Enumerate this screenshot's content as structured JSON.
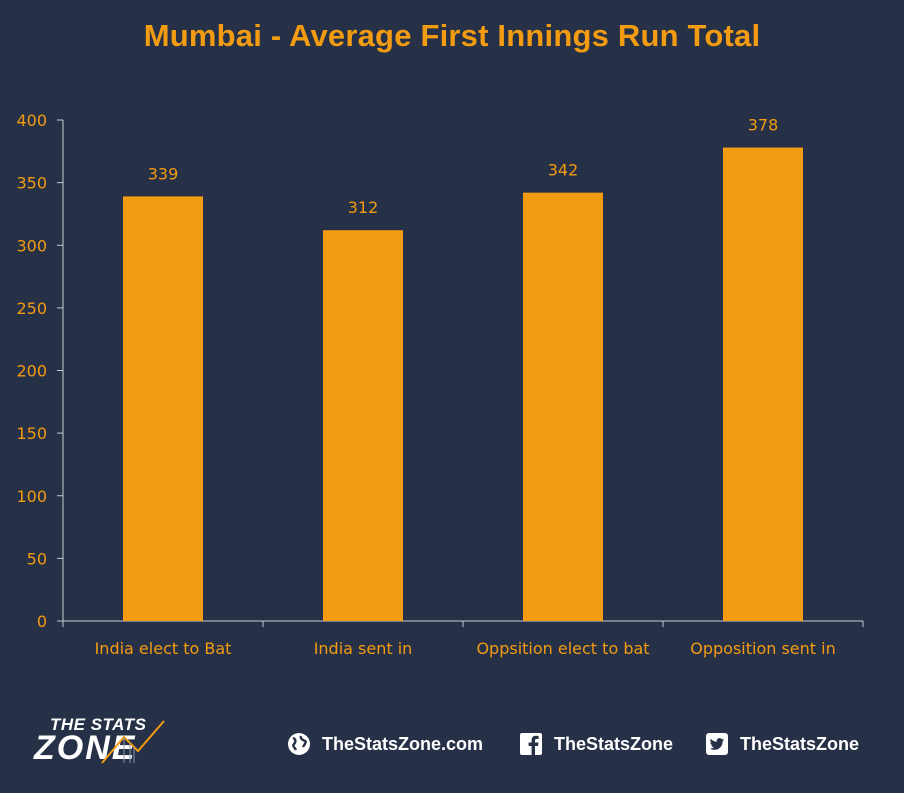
{
  "chart_data": {
    "type": "bar",
    "title": "Mumbai - Average First Innings Run Total",
    "categories": [
      "India elect to Bat",
      "India sent in",
      "Oppsition elect to bat",
      "Opposition sent in"
    ],
    "values": [
      339,
      312,
      342,
      378
    ],
    "data_labels": [
      "339",
      "312",
      "342",
      "378"
    ],
    "xlabel": "",
    "ylabel": "",
    "ylim": [
      0,
      400
    ],
    "yticks": [
      0,
      50,
      100,
      150,
      200,
      250,
      300,
      350,
      400
    ],
    "grid": false,
    "legend": "none",
    "bar_color": "#F39C12",
    "background_color": "#263046",
    "text_color": "#F39C12"
  },
  "footer": {
    "logo_top": "THE STATS",
    "logo_bottom": "ZONE",
    "website": "TheStatsZone.com",
    "facebook": "TheStatsZone",
    "twitter": "TheStatsZone",
    "icons": [
      "globe-icon",
      "facebook-icon",
      "twitter-icon"
    ]
  }
}
